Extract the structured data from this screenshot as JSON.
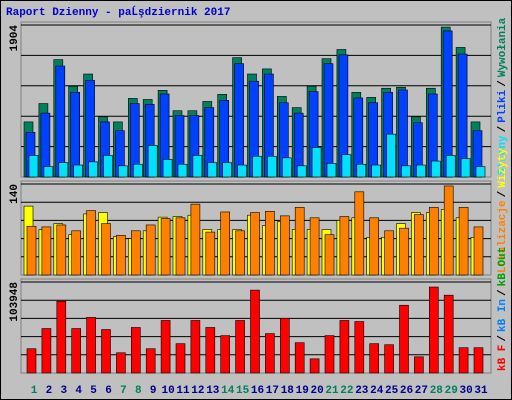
{
  "chart_data": [
    {
      "type": "bar",
      "title": "Raport Dzienny -  paĹşdziernik 2017",
      "ylim": [
        0,
        1904
      ],
      "yticks": [
        1904
      ],
      "separator": "/",
      "series": [
        {
          "name": "Wywołania",
          "color": "#00805c",
          "values": [
            690,
            920,
            1470,
            1137,
            1290,
            754,
            690,
            984,
            971,
            1086,
            830,
            830,
            946,
            1035,
            1495,
            1290,
            1354,
            1010,
            869,
            1137,
            1482,
            1597,
            1060,
            997,
            1112,
            1124,
            754,
            1112,
            1878,
            1623,
            690
          ]
        },
        {
          "name": "Pliki",
          "color": "#0040ff",
          "values": [
            560,
            800,
            1390,
            1060,
            1210,
            690,
            580,
            920,
            910,
            1040,
            770,
            770,
            870,
            960,
            1420,
            1200,
            1290,
            930,
            800,
            1070,
            1420,
            1530,
            990,
            930,
            1060,
            1090,
            680,
            1040,
            1830,
            1540,
            580
          ]
        },
        {
          "name": "Strony",
          "color": "#00e0ff",
          "values": [
            270,
            130,
            180,
            150,
            190,
            270,
            140,
            160,
            396,
            220,
            160,
            270,
            180,
            180,
            150,
            260,
            260,
            240,
            140,
            370,
            170,
            280,
            160,
            150,
            537,
            140,
            150,
            200,
            270,
            230,
            130
          ]
        }
      ]
    },
    {
      "type": "bar",
      "ylim": [
        0,
        140
      ],
      "yticks": [
        140
      ],
      "separator": "/",
      "series": [
        {
          "name": "Wizyty",
          "color": "#ffff00",
          "values": [
            106,
            70,
            79,
            62,
            94,
            96,
            59,
            56,
            68,
            89,
            90,
            92,
            70,
            70,
            70,
            92,
            76,
            82,
            70,
            70,
            70,
            84,
            88,
            58,
            58,
            79,
            96,
            96,
            101,
            88,
            58
          ]
        },
        {
          "name": "Lokalizacje",
          "color": "#ff8000",
          "values": [
            75,
            74,
            77,
            68,
            99,
            79,
            61,
            68,
            77,
            87,
            88,
            109,
            66,
            97,
            68,
            96,
            98,
            91,
            104,
            88,
            62,
            90,
            128,
            88,
            68,
            72,
            93,
            104,
            137,
            104,
            74
          ]
        }
      ]
    },
    {
      "type": "bar",
      "ylim": [
        0,
        103948
      ],
      "yticks": [
        103948
      ],
      "separator": "/",
      "categories": [
        "1",
        "2",
        "3",
        "4",
        "5",
        "6",
        "7",
        "8",
        "9",
        "10",
        "11",
        "12",
        "13",
        "14",
        "15",
        "16",
        "17",
        "18",
        "19",
        "20",
        "21",
        "22",
        "23",
        "24",
        "25",
        "26",
        "27",
        "28",
        "29",
        "30",
        "31"
      ],
      "category_colors": [
        "#00805c",
        "#00008b",
        "#00008b",
        "#00008b",
        "#00008b",
        "#00008b",
        "#00805c",
        "#00805c",
        "#00008b",
        "#00008b",
        "#00008b",
        "#00008b",
        "#00008b",
        "#00805c",
        "#00805c",
        "#00008b",
        "#00008b",
        "#00008b",
        "#00008b",
        "#00008b",
        "#00805c",
        "#00805c",
        "#00008b",
        "#00008b",
        "#00008b",
        "#00008b",
        "#00008b",
        "#00805c",
        "#00805c",
        "#00008b",
        "#00008b"
      ],
      "series": [
        {
          "name": "kB Out",
          "color": "#00a000"
        },
        {
          "name": "kB In",
          "color": "#0080ff"
        },
        {
          "name": "kB F",
          "color": "#ff0000",
          "values": [
            27720,
            50800,
            82000,
            50800,
            63500,
            49660,
            23100,
            52000,
            27720,
            60000,
            33500,
            60000,
            52000,
            42700,
            60000,
            94700,
            45000,
            62400,
            34600,
            16200,
            42700,
            60000,
            58800,
            33500,
            32300,
            77400,
            18500,
            98200,
            88900,
            28900,
            28900
          ]
        }
      ]
    }
  ]
}
